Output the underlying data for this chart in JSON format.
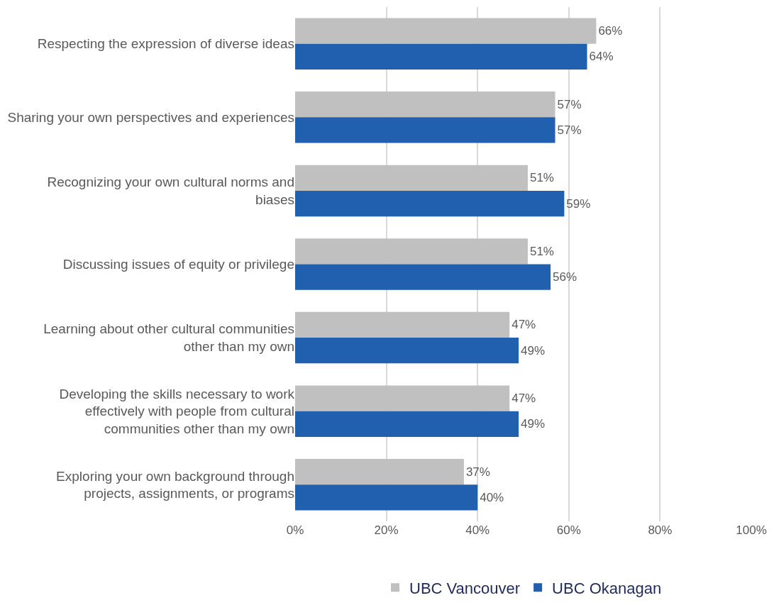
{
  "chart_data": {
    "type": "bar",
    "orientation": "horizontal",
    "categories": [
      "Respecting the expression of diverse ideas",
      "Sharing your own perspectives and experiences",
      "Recognizing your own cultural norms and biases",
      "Discussing issues of equity or privilege",
      "Learning about other cultural communities other than my own",
      "Developing the skills necessary to work effectively with people from cultural communities other than my own",
      "Exploring your own background through projects, assignments, or programs"
    ],
    "series": [
      {
        "name": "UBC Vancouver",
        "color": "#c0c0c0",
        "values": [
          66,
          57,
          51,
          51,
          47,
          47,
          37
        ],
        "value_labels": [
          "66%",
          "57%",
          "51%",
          "51%",
          "47%",
          "47%",
          "37%"
        ]
      },
      {
        "name": "UBC Okanagan",
        "color": "#2160ae",
        "values": [
          64,
          57,
          59,
          56,
          49,
          49,
          40
        ],
        "value_labels": [
          "64%",
          "57%",
          "59%",
          "56%",
          "49%",
          "49%",
          "40%"
        ]
      }
    ],
    "xlim": [
      0,
      100
    ],
    "xticks": [
      {
        "value": 0,
        "label": "0%"
      },
      {
        "value": 20,
        "label": "20%"
      },
      {
        "value": 40,
        "label": "40%"
      },
      {
        "value": 60,
        "label": "60%"
      },
      {
        "value": 80,
        "label": "80%"
      },
      {
        "value": 100,
        "label": "100%"
      }
    ],
    "grid": "x",
    "legend": "bottom"
  }
}
